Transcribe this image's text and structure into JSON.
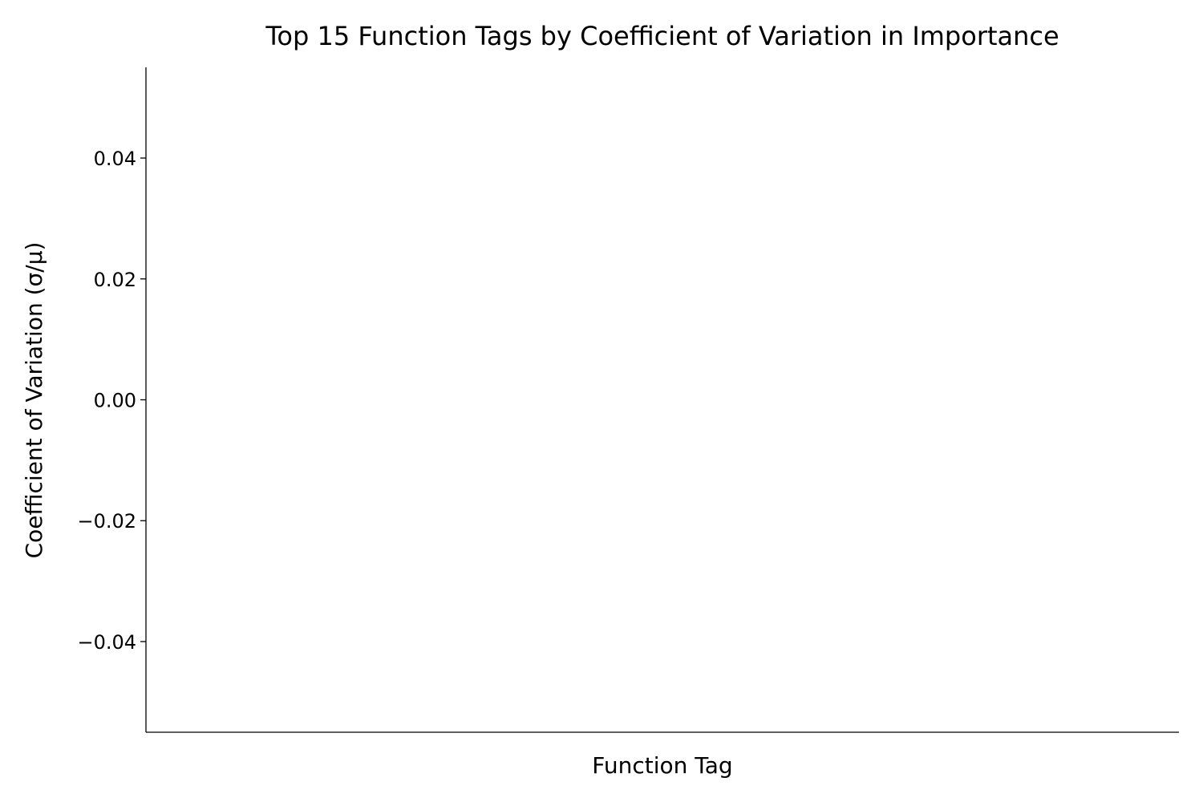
{
  "chart_data": {
    "type": "bar",
    "title": "Top 15 Function Tags by Coefficient of Variation in Importance",
    "xlabel": "Function Tag",
    "ylabel": "Coefficient of Variation (σ/μ)",
    "categories": [],
    "values": [],
    "ylim": [
      -0.055,
      0.055
    ],
    "yticks": [
      {
        "value": 0.04,
        "label": "0.04"
      },
      {
        "value": 0.02,
        "label": "0.02"
      },
      {
        "value": 0.0,
        "label": "0.00"
      },
      {
        "value": -0.02,
        "label": "−0.02"
      },
      {
        "value": -0.04,
        "label": "−0.04"
      }
    ],
    "grid": false,
    "legend": "none"
  }
}
